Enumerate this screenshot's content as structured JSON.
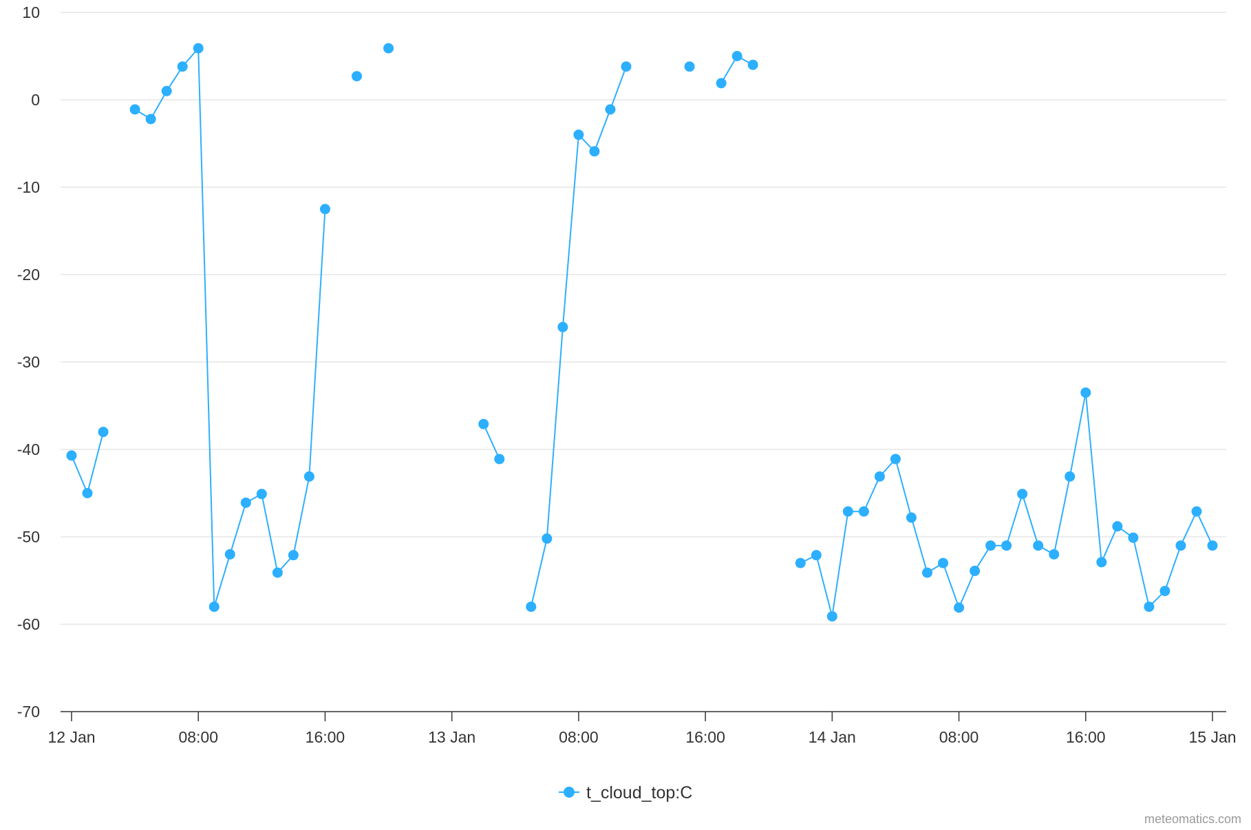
{
  "chart_data": {
    "type": "line",
    "title": "",
    "xlabel": "",
    "ylabel": "",
    "ylim": [
      -70,
      10
    ],
    "yticks": [
      10,
      0,
      -10,
      -20,
      -30,
      -40,
      -50,
      -60,
      -70
    ],
    "xlim": [
      "12 Jan 00:00",
      "15 Jan 00:00"
    ],
    "xticks": [
      {
        "t": "12 Jan 00:00",
        "label": "12 Jan"
      },
      {
        "t": "12 Jan 08:00",
        "label": "08:00"
      },
      {
        "t": "12 Jan 16:00",
        "label": "16:00"
      },
      {
        "t": "13 Jan 00:00",
        "label": "13 Jan"
      },
      {
        "t": "13 Jan 08:00",
        "label": "08:00"
      },
      {
        "t": "13 Jan 16:00",
        "label": "16:00"
      },
      {
        "t": "14 Jan 00:00",
        "label": "14 Jan"
      },
      {
        "t": "14 Jan 08:00",
        "label": "08:00"
      },
      {
        "t": "14 Jan 16:00",
        "label": "16:00"
      },
      {
        "t": "15 Jan 00:00",
        "label": "15 Jan"
      }
    ],
    "grid": true,
    "legend_position": "bottom-center",
    "series": [
      {
        "name": "t_cloud_top:C",
        "color": "#2caffe",
        "points": [
          {
            "x": "12 Jan 00:00",
            "y": -40.7
          },
          {
            "x": "12 Jan 01:00",
            "y": -45
          },
          {
            "x": "12 Jan 02:00",
            "y": -38
          },
          {
            "x": "12 Jan 03:00",
            "y": null
          },
          {
            "x": "12 Jan 04:00",
            "y": -1.1
          },
          {
            "x": "12 Jan 05:00",
            "y": -2.2
          },
          {
            "x": "12 Jan 06:00",
            "y": 1
          },
          {
            "x": "12 Jan 07:00",
            "y": 3.8
          },
          {
            "x": "12 Jan 08:00",
            "y": 5.9
          },
          {
            "x": "12 Jan 09:00",
            "y": -58
          },
          {
            "x": "12 Jan 10:00",
            "y": -52
          },
          {
            "x": "12 Jan 11:00",
            "y": -46.1
          },
          {
            "x": "12 Jan 12:00",
            "y": -45.1
          },
          {
            "x": "12 Jan 13:00",
            "y": -54.1
          },
          {
            "x": "12 Jan 14:00",
            "y": -52.1
          },
          {
            "x": "12 Jan 15:00",
            "y": -43.1
          },
          {
            "x": "12 Jan 16:00",
            "y": -12.5
          },
          {
            "x": "12 Jan 17:00",
            "y": null
          },
          {
            "x": "12 Jan 18:00",
            "y": 2.7
          },
          {
            "x": "12 Jan 19:00",
            "y": null
          },
          {
            "x": "12 Jan 20:00",
            "y": 5.9
          },
          {
            "x": "12 Jan 21:00",
            "y": null
          },
          {
            "x": "12 Jan 22:00",
            "y": null
          },
          {
            "x": "12 Jan 23:00",
            "y": null
          },
          {
            "x": "13 Jan 00:00",
            "y": null
          },
          {
            "x": "13 Jan 01:00",
            "y": null
          },
          {
            "x": "13 Jan 02:00",
            "y": -37.1
          },
          {
            "x": "13 Jan 03:00",
            "y": -41.1
          },
          {
            "x": "13 Jan 04:00",
            "y": null
          },
          {
            "x": "13 Jan 05:00",
            "y": -58
          },
          {
            "x": "13 Jan 06:00",
            "y": -50.2
          },
          {
            "x": "13 Jan 07:00",
            "y": -26
          },
          {
            "x": "13 Jan 08:00",
            "y": -4
          },
          {
            "x": "13 Jan 09:00",
            "y": -5.9
          },
          {
            "x": "13 Jan 10:00",
            "y": -1.1
          },
          {
            "x": "13 Jan 11:00",
            "y": 3.8
          },
          {
            "x": "13 Jan 12:00",
            "y": null
          },
          {
            "x": "13 Jan 13:00",
            "y": null
          },
          {
            "x": "13 Jan 14:00",
            "y": null
          },
          {
            "x": "13 Jan 15:00",
            "y": 3.8
          },
          {
            "x": "13 Jan 16:00",
            "y": null
          },
          {
            "x": "13 Jan 17:00",
            "y": 1.9
          },
          {
            "x": "13 Jan 18:00",
            "y": 5
          },
          {
            "x": "13 Jan 19:00",
            "y": 4
          },
          {
            "x": "13 Jan 20:00",
            "y": null
          },
          {
            "x": "13 Jan 21:00",
            "y": null
          },
          {
            "x": "13 Jan 22:00",
            "y": -53
          },
          {
            "x": "13 Jan 23:00",
            "y": -52.1
          },
          {
            "x": "14 Jan 00:00",
            "y": -59.1
          },
          {
            "x": "14 Jan 01:00",
            "y": -47.1
          },
          {
            "x": "14 Jan 02:00",
            "y": -47.1
          },
          {
            "x": "14 Jan 03:00",
            "y": -43.1
          },
          {
            "x": "14 Jan 04:00",
            "y": -41.1
          },
          {
            "x": "14 Jan 05:00",
            "y": -47.8
          },
          {
            "x": "14 Jan 06:00",
            "y": -54.1
          },
          {
            "x": "14 Jan 07:00",
            "y": -53
          },
          {
            "x": "14 Jan 08:00",
            "y": -58.1
          },
          {
            "x": "14 Jan 09:00",
            "y": -53.9
          },
          {
            "x": "14 Jan 10:00",
            "y": -51
          },
          {
            "x": "14 Jan 11:00",
            "y": -51
          },
          {
            "x": "14 Jan 12:00",
            "y": -45.1
          },
          {
            "x": "14 Jan 13:00",
            "y": -51
          },
          {
            "x": "14 Jan 14:00",
            "y": -52
          },
          {
            "x": "14 Jan 15:00",
            "y": -43.1
          },
          {
            "x": "14 Jan 16:00",
            "y": -33.5
          },
          {
            "x": "14 Jan 17:00",
            "y": -52.9
          },
          {
            "x": "14 Jan 18:00",
            "y": -48.8
          },
          {
            "x": "14 Jan 19:00",
            "y": -50.1
          },
          {
            "x": "14 Jan 20:00",
            "y": -58
          },
          {
            "x": "14 Jan 21:00",
            "y": -56.2
          },
          {
            "x": "14 Jan 22:00",
            "y": -51
          },
          {
            "x": "14 Jan 23:00",
            "y": -47.1
          },
          {
            "x": "15 Jan 00:00",
            "y": -51
          }
        ]
      }
    ]
  },
  "legend": {
    "label": "t_cloud_top:C"
  },
  "credits": "meteomatics.com"
}
